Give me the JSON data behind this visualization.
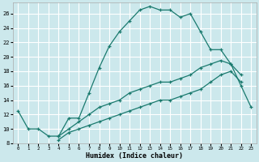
{
  "xlabel": "Humidex (Indice chaleur)",
  "background_color": "#cce8ec",
  "grid_color": "#ffffff",
  "line_color": "#1a7a6e",
  "xlim": [
    -0.5,
    23.5
  ],
  "ylim": [
    8,
    27.5
  ],
  "xticks": [
    0,
    1,
    2,
    3,
    4,
    5,
    6,
    7,
    8,
    9,
    10,
    11,
    12,
    13,
    14,
    15,
    16,
    17,
    18,
    19,
    20,
    21,
    22,
    23
  ],
  "yticks": [
    8,
    10,
    12,
    14,
    16,
    18,
    20,
    22,
    24,
    26
  ],
  "series": [
    {
      "x": [
        0,
        1,
        2,
        3,
        4,
        5,
        6,
        7,
        8,
        9,
        10,
        11,
        12,
        13,
        14,
        15,
        16,
        17,
        18,
        19,
        20,
        21,
        22
      ],
      "y": [
        12.5,
        10,
        10,
        9,
        9,
        11.5,
        11.5,
        15,
        18.5,
        21.5,
        23.5,
        25,
        26.5,
        27,
        26.5,
        26.5,
        25.5,
        26,
        23.5,
        21,
        21,
        19,
        17.5
      ]
    },
    {
      "x": [
        4,
        5,
        6,
        7,
        8,
        9,
        10,
        11,
        12,
        13,
        14,
        15,
        16,
        17,
        18,
        19,
        20,
        21,
        22
      ],
      "y": [
        8.5,
        9.5,
        10,
        10.5,
        11,
        11.5,
        12,
        12.5,
        13,
        13.5,
        14,
        14,
        14.5,
        15,
        15.5,
        16.5,
        17.5,
        18,
        16.5
      ]
    },
    {
      "x": [
        4,
        5,
        6,
        7,
        8,
        9,
        10,
        11,
        12,
        13,
        14,
        15,
        16,
        17,
        18,
        19,
        20,
        21,
        22,
        23
      ],
      "y": [
        9,
        10,
        11,
        12,
        13,
        13.5,
        14,
        15,
        15.5,
        16,
        16.5,
        16.5,
        17,
        17.5,
        18.5,
        19,
        19.5,
        19,
        16,
        13
      ]
    }
  ]
}
